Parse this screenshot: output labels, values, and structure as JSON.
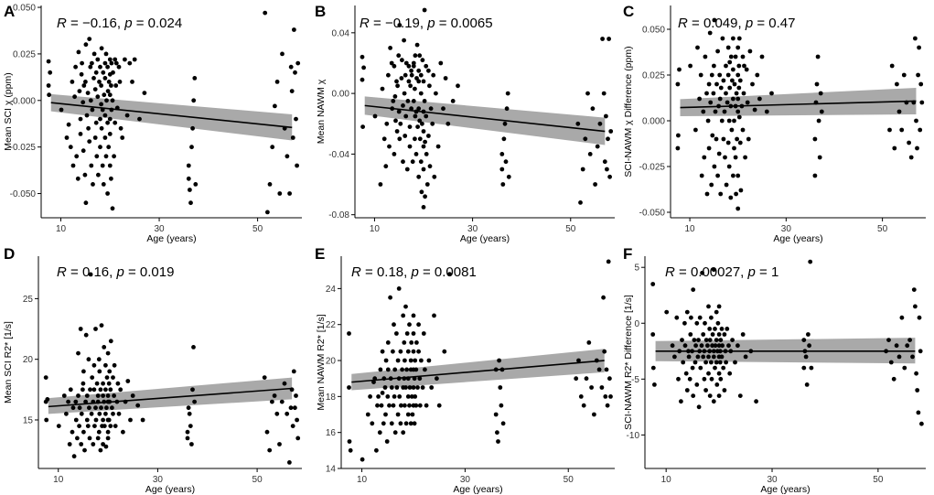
{
  "chart_data": [
    {
      "panel": "A",
      "type": "scatter",
      "stat": {
        "r_label": "R",
        "r_value": " = −0.16, ",
        "p_label": "p",
        "p_value": " = 0.024"
      },
      "xlabel": "Age (years)",
      "ylabel": "Mean SCI χ (ppm)",
      "xlim": [
        6,
        59
      ],
      "ylim": [
        -0.063,
        0.051
      ],
      "xticks": [
        10,
        30,
        50
      ],
      "xticklabels": [
        "10",
        "30",
        "50"
      ],
      "yticks": [
        -0.05,
        -0.025,
        0.0,
        0.025,
        0.05
      ],
      "yticklabels": [
        "-0.050",
        "-0.025",
        "0.000",
        "0.025",
        "0.050"
      ],
      "fit": {
        "x0": 8,
        "y0": -0.0012,
        "x1": 57,
        "y1": -0.0145
      },
      "band": {
        "lo0": -0.0058,
        "hi0": 0.0034,
        "lo1": -0.0215,
        "hi1": -0.0075
      }
    },
    {
      "panel": "B",
      "type": "scatter",
      "stat": {
        "r_label": "R",
        "r_value": " = −0.19, ",
        "p_label": "p",
        "p_value": " = 0.0065"
      },
      "xlabel": "Age (years)",
      "ylabel": "Mean NAWM χ",
      "xlim": [
        6,
        59
      ],
      "ylim": [
        -0.082,
        0.058
      ],
      "xticks": [
        10,
        30,
        50
      ],
      "xticklabels": [
        "10",
        "30",
        "50"
      ],
      "yticks": [
        -0.08,
        -0.04,
        0.0,
        0.04
      ],
      "yticklabels": [
        "-0.08",
        "-0.04",
        "0.00",
        "0.04"
      ],
      "fit": {
        "x0": 8,
        "y0": -0.008,
        "x1": 57,
        "y1": -0.025
      },
      "band": {
        "lo0": -0.014,
        "hi0": -0.002,
        "lo1": -0.034,
        "hi1": -0.016
      }
    },
    {
      "panel": "C",
      "type": "scatter",
      "stat": {
        "r_label": "R",
        "r_value": " = 0.049, ",
        "p_label": "p",
        "p_value": " = 0.47"
      },
      "xlabel": "Age (years)",
      "ylabel": "SCI-NAWM χ Difference (ppm)",
      "xlim": [
        6,
        59
      ],
      "ylim": [
        -0.053,
        0.063
      ],
      "xticks": [
        10,
        30,
        50
      ],
      "xticklabels": [
        "10",
        "30",
        "50"
      ],
      "yticks": [
        -0.05,
        -0.025,
        0.0,
        0.025,
        0.05
      ],
      "yticklabels": [
        "-0.050",
        "-0.025",
        "0.000",
        "0.025",
        "0.050"
      ],
      "fit": {
        "x0": 8,
        "y0": 0.0072,
        "x1": 57,
        "y1": 0.0108
      },
      "band": {
        "lo0": 0.0025,
        "hi0": 0.0118,
        "lo1": 0.0035,
        "hi1": 0.018
      }
    },
    {
      "panel": "D",
      "type": "scatter",
      "stat": {
        "r_label": "R",
        "r_value": " = 0.16, ",
        "p_label": "p",
        "p_value": " = 0.019"
      },
      "xlabel": "Age (years)",
      "ylabel": "Mean SCI R2* [1/s]",
      "xlim": [
        6,
        59
      ],
      "ylim": [
        11.0,
        28.5
      ],
      "xticks": [
        10,
        30,
        50
      ],
      "xticklabels": [
        "10",
        "30",
        "50"
      ],
      "yticks": [
        15,
        20,
        25
      ],
      "yticklabels": [
        "15",
        "20",
        "25"
      ],
      "fit": {
        "x0": 8,
        "y0": 16.1,
        "x1": 57,
        "y1": 17.6
      },
      "band": {
        "lo0": 15.5,
        "hi0": 16.8,
        "lo1": 16.7,
        "hi1": 18.5
      }
    },
    {
      "panel": "E",
      "type": "scatter",
      "stat": {
        "r_label": "R",
        "r_value": " = 0.18, ",
        "p_label": "p",
        "p_value": " = 0.0081"
      },
      "xlabel": "Age (years)",
      "ylabel": "Mean NAWM R2* [1/s]",
      "xlim": [
        6,
        59
      ],
      "ylim": [
        14.0,
        25.8
      ],
      "xticks": [
        10,
        30,
        50
      ],
      "xticklabels": [
        "10",
        "30",
        "50"
      ],
      "yticks": [
        14,
        16,
        18,
        20,
        22,
        24
      ],
      "yticklabels": [
        "14",
        "16",
        "18",
        "20",
        "22",
        "24"
      ],
      "fit": {
        "x0": 8,
        "y0": 18.8,
        "x1": 57,
        "y1": 20.0
      },
      "band": {
        "lo0": 18.35,
        "hi0": 19.25,
        "lo1": 19.35,
        "hi1": 20.65
      }
    },
    {
      "panel": "F",
      "type": "scatter",
      "stat": {
        "r_label": "R",
        "r_value": " = 0.00027, ",
        "p_label": "p",
        "p_value": " = 1"
      },
      "xlabel": "Age (years)",
      "ylabel": "SCI-NAWM R2* Difference [1/s]",
      "xlim": [
        6,
        59
      ],
      "ylim": [
        -13.0,
        6.0
      ],
      "xticks": [
        10,
        30,
        50
      ],
      "xticklabels": [
        "10",
        "30",
        "50"
      ],
      "yticks": [
        -10,
        -5,
        0,
        5
      ],
      "yticklabels": [
        "-10",
        "-5",
        "0",
        "5"
      ],
      "fit": {
        "x0": 8,
        "y0": -2.5,
        "x1": 57,
        "y1": -2.5
      },
      "band": {
        "lo0": -3.4,
        "hi0": -1.6,
        "lo1": -3.6,
        "hi1": -1.3
      }
    }
  ],
  "points_x": [
    7.5,
    7.5,
    7.6,
    7.8,
    10.1,
    11.2,
    11.6,
    12.0,
    12.3,
    12.5,
    12.8,
    13.0,
    13.2,
    13.5,
    13.6,
    13.8,
    14.0,
    14.0,
    14.2,
    14.3,
    14.5,
    14.6,
    14.7,
    14.9,
    15.0,
    15.1,
    15.1,
    15.3,
    15.5,
    15.6,
    15.8,
    15.8,
    16.0,
    16.1,
    16.2,
    16.3,
    16.4,
    16.5,
    16.7,
    16.8,
    17.0,
    17.0,
    17.2,
    17.2,
    17.3,
    17.5,
    17.5,
    17.6,
    17.8,
    18.0,
    18.0,
    18.0,
    18.2,
    18.2,
    18.3,
    18.3,
    18.5,
    18.5,
    18.6,
    18.7,
    18.8,
    19.0,
    19.0,
    19.0,
    19.0,
    19.2,
    19.2,
    19.3,
    19.5,
    19.5,
    19.5,
    19.6,
    19.7,
    19.8,
    20.0,
    20.0,
    20.0,
    20.0,
    20.0,
    20.0,
    20.2,
    20.2,
    20.3,
    20.3,
    20.5,
    20.5,
    20.6,
    20.8,
    21.0,
    21.0,
    21.2,
    21.3,
    21.5,
    21.8,
    22.0,
    22.2,
    22.5,
    23.0,
    23.5,
    24.0,
    24.5,
    25.0,
    26.0,
    27.0,
    36.0,
    36.0,
    36.2,
    36.4,
    36.6,
    36.8,
    37.0,
    37.2,
    37.4,
    51.5,
    52.0,
    52.5,
    53.0,
    53.5,
    54.0,
    54.5,
    55.0,
    55.5,
    56.0,
    56.5,
    56.8,
    57.0,
    57.2,
    57.4,
    57.6,
    57.8,
    58.0,
    58.2
  ],
  "points_y_A": [
    0.021,
    0.008,
    0.003,
    0.015,
    -0.005,
    -0.02,
    -0.013,
    -0.025,
    0.01,
    -0.035,
    0.002,
    0.018,
    -0.03,
    -0.042,
    0.026,
    0.005,
    -0.01,
    -0.018,
    0.014,
    0.02,
    -0.001,
    -0.027,
    0.008,
    -0.04,
    0.01,
    -0.055,
    0.03,
    -0.008,
    0.004,
    -0.015,
    0.033,
    -0.022,
    0.018,
    0.0,
    -0.035,
    0.02,
    -0.005,
    -0.045,
    0.012,
    0.025,
    -0.02,
    0.006,
    0.015,
    -0.012,
    -0.03,
    0.002,
    0.022,
    -0.04,
    0.01,
    -0.01,
    -0.025,
    0.018,
    -0.002,
    0.008,
    -0.015,
    0.028,
    -0.035,
    -0.005,
    0.015,
    -0.045,
    0.003,
    0.02,
    -0.02,
    -0.008,
    0.012,
    -0.03,
    0.025,
    0.0,
    -0.012,
    -0.05,
    0.018,
    0.005,
    -0.025,
    0.01,
    0.022,
    -0.01,
    -0.035,
    0.014,
    -0.018,
    0.003,
    -0.042,
    0.008,
    0.02,
    -0.005,
    -0.058,
    0.0,
    0.015,
    -0.03,
    0.022,
    -0.012,
    0.008,
    0.02,
    -0.004,
    0.018,
    0.01,
    -0.015,
    -0.02,
    0.022,
    -0.008,
    0.02,
    0.01,
    0.022,
    -0.01,
    0.004,
    -0.035,
    -0.042,
    -0.048,
    -0.055,
    -0.025,
    -0.015,
    0.0,
    0.012,
    -0.045,
    0.047,
    -0.06,
    -0.045,
    -0.025,
    -0.003,
    0.01,
    -0.05,
    0.025,
    -0.015,
    -0.03,
    -0.05,
    0.018,
    0.005,
    -0.02,
    0.038,
    0.015,
    -0.01,
    -0.035,
    0.02
  ],
  "points_y_B": [
    0.024,
    0.009,
    -0.022,
    0.017,
    -0.015,
    -0.06,
    0.003,
    -0.03,
    -0.048,
    -0.02,
    0.012,
    -0.035,
    0.03,
    0.02,
    -0.01,
    -0.005,
    0.018,
    -0.04,
    -0.002,
    -0.018,
    0.008,
    -0.025,
    0.005,
    0.025,
    -0.012,
    -0.03,
    0.045,
    -0.02,
    0.01,
    0.022,
    -0.045,
    -0.008,
    0.035,
    0.0,
    -0.028,
    0.012,
    -0.015,
    0.02,
    -0.05,
    -0.005,
    0.008,
    0.018,
    -0.022,
    -0.035,
    0.005,
    0.015,
    -0.01,
    0.012,
    -0.045,
    0.02,
    -0.005,
    0.018,
    -0.03,
    0.003,
    -0.015,
    0.025,
    -0.04,
    -0.012,
    0.01,
    0.032,
    -0.022,
    0.008,
    -0.055,
    0.015,
    -0.01,
    -0.018,
    0.025,
    -0.03,
    0.0,
    -0.045,
    0.012,
    -0.065,
    -0.02,
    0.022,
    -0.012,
    -0.035,
    -0.05,
    0.008,
    -0.025,
    -0.075,
    0.055,
    -0.005,
    -0.068,
    -0.032,
    -0.015,
    0.018,
    -0.04,
    -0.06,
    0.015,
    -0.028,
    0.005,
    -0.048,
    -0.01,
    -0.02,
    0.012,
    -0.055,
    0.0,
    -0.035,
    0.02,
    -0.01,
    0.01,
    -0.02,
    -0.005,
    0.005,
    -0.04,
    -0.05,
    -0.06,
    -0.03,
    -0.02,
    -0.045,
    -0.01,
    0.0,
    -0.055,
    -0.02,
    -0.072,
    -0.05,
    -0.03,
    0.0,
    -0.04,
    -0.01,
    -0.06,
    -0.035,
    -0.02,
    0.036,
    0.0,
    -0.045,
    -0.015,
    -0.05,
    -0.03,
    0.036,
    -0.055,
    -0.025
  ],
  "points_y_C": [
    0.02,
    -0.015,
    -0.008,
    0.028,
    0.03,
    -0.005,
    0.04,
    0.012,
    0.025,
    -0.03,
    0.005,
    -0.02,
    0.035,
    0.015,
    -0.04,
    0.0,
    0.02,
    -0.015,
    0.048,
    0.01,
    -0.035,
    0.025,
    -0.008,
    0.015,
    0.03,
    -0.025,
    0.055,
    0.005,
    -0.01,
    0.02,
    -0.03,
    0.038,
    0.008,
    -0.018,
    0.025,
    0.012,
    -0.04,
    0.018,
    0.0,
    0.045,
    -0.01,
    0.022,
    0.065,
    0.005,
    -0.02,
    0.03,
    0.015,
    -0.035,
    0.01,
    0.04,
    -0.012,
    0.025,
    0.0,
    -0.025,
    0.032,
    0.018,
    0.008,
    -0.042,
    0.035,
    -0.005,
    0.022,
    0.012,
    -0.03,
    0.028,
    0.045,
    0.0,
    -0.015,
    0.02,
    0.008,
    -0.02,
    0.035,
    -0.04,
    0.015,
    -0.01,
    0.025,
    0.005,
    -0.03,
    0.04,
    0.012,
    -0.048,
    0.03,
    0.018,
    0.045,
    0.002,
    -0.012,
    0.022,
    -0.038,
    0.008,
    0.035,
    -0.005,
    0.015,
    0.03,
    -0.02,
    0.028,
    0.01,
    -0.01,
    0.038,
    0.02,
    0.006,
    0.025,
    0.012,
    0.035,
    0.005,
    0.015,
    -0.03,
    -0.01,
    0.01,
    0.02,
    0.035,
    0.0,
    -0.02,
    0.015,
    0.005,
    -0.005,
    0.03,
    -0.015,
    0.02,
    0.005,
    -0.005,
    0.025,
    0.01,
    -0.012,
    -0.02,
    0.01,
    0.045,
    0.0,
    -0.015,
    0.025,
    0.04,
    -0.005,
    0.02,
    0.01
  ],
  "points_y_D": [
    18.5,
    16.5,
    15.0,
    16.7,
    14.5,
    17.0,
    15.5,
    16.5,
    13.0,
    17.5,
    14.0,
    16.0,
    12.0,
    16.5,
    15.0,
    13.5,
    20.5,
    17.0,
    14.5,
    16.0,
    22.5,
    13.0,
    15.5,
    17.5,
    18.0,
    14.0,
    19.0,
    12.5,
    16.5,
    22.0,
    15.0,
    17.0,
    14.5,
    20.0,
    16.0,
    13.5,
    17.5,
    27.0,
    15.5,
    18.5,
    16.5,
    13.0,
    19.5,
    17.5,
    14.5,
    22.5,
    16.0,
    15.0,
    18.0,
    13.5,
    17.0,
    16.5,
    20.0,
    14.0,
    15.5,
    19.0,
    17.5,
    12.5,
    16.0,
    22.8,
    14.5,
    18.0,
    15.0,
    17.0,
    13.0,
    16.5,
    21.0,
    14.5,
    19.5,
    15.5,
    17.5,
    12.8,
    16.0,
    18.5,
    15.0,
    13.5,
    20.5,
    17.0,
    14.0,
    16.5,
    18.0,
    15.0,
    19.0,
    16.5,
    14.5,
    17.5,
    21.5,
    16.0,
    18.5,
    15.5,
    17.0,
    19.5,
    14.5,
    16.5,
    18.0,
    15.5,
    17.5,
    14.0,
    16.5,
    18.2,
    15.0,
    17.0,
    16.2,
    15.0,
    14.0,
    13.5,
    16.0,
    15.5,
    14.5,
    13.0,
    17.5,
    21.0,
    16.5,
    18.5,
    14.0,
    12.5,
    16.5,
    17.0,
    15.5,
    13.0,
    16.5,
    18.0,
    15.5,
    11.5,
    16.0,
    17.5,
    14.5,
    19.0,
    16.0,
    17.0,
    15.0,
    13.5
  ],
  "points_y_E": [
    21.5,
    18.5,
    15.5,
    15.0,
    14.5,
    17.0,
    18.0,
    16.5,
    18.8,
    19.0,
    15.0,
    17.5,
    18.0,
    16.0,
    19.5,
    17.5,
    20.5,
    18.2,
    16.5,
    19.0,
    18.5,
    17.0,
    20.0,
    15.5,
    18.0,
    19.5,
    21.0,
    17.5,
    23.5,
    19.0,
    16.5,
    18.5,
    20.5,
    17.5,
    22.0,
    18.0,
    19.5,
    16.0,
    21.5,
    18.5,
    17.0,
    20.0,
    19.0,
    24.0,
    18.0,
    16.5,
    20.5,
    17.5,
    19.5,
    22.5,
    18.5,
    16.0,
    21.0,
    19.0,
    17.5,
    20.0,
    18.5,
    23.0,
    16.5,
    19.5,
    21.5,
    18.0,
    17.0,
    20.5,
    19.0,
    22.0,
    17.5,
    18.5,
    20.0,
    16.5,
    19.5,
    21.0,
    18.0,
    17.0,
    22.5,
    19.5,
    18.5,
    20.5,
    17.5,
    21.5,
    19.0,
    16.5,
    18.0,
    20.0,
    19.5,
    17.5,
    21.0,
    18.5,
    20.5,
    22.0,
    19.0,
    17.5,
    20.0,
    18.5,
    21.5,
    19.5,
    17.5,
    20.0,
    18.5,
    22.5,
    19.0,
    17.5,
    20.5,
    24.8,
    19.5,
    17.0,
    16.0,
    15.5,
    20.0,
    18.5,
    17.5,
    19.5,
    16.5,
    19.0,
    20.0,
    18.0,
    17.5,
    19.0,
    21.0,
    18.5,
    17.0,
    20.0,
    19.5,
    18.5,
    23.5,
    20.5,
    18.0,
    19.5,
    17.5,
    25.5,
    19.0,
    18.0
  ],
  "points_y_F": [
    3.5,
    -1.0,
    -4.0,
    -5.5,
    1.0,
    -2.0,
    -3.0,
    0.5,
    -5.0,
    -2.5,
    -7.0,
    -1.5,
    -3.5,
    0.0,
    -2.0,
    -4.5,
    -6.0,
    1.0,
    -2.5,
    -3.0,
    -5.0,
    -1.0,
    0.5,
    -2.5,
    -4.0,
    3.0,
    -6.5,
    -1.5,
    -3.5,
    -2.0,
    -5.5,
    0.0,
    -3.0,
    -1.5,
    -7.5,
    -2.5,
    0.5,
    -4.0,
    -2.0,
    4.5,
    -3.0,
    -1.0,
    -5.0,
    -2.5,
    0.0,
    -6.0,
    -3.5,
    -1.5,
    -2.0,
    1.5,
    -4.5,
    -3.0,
    -0.5,
    -2.5,
    -6.5,
    -1.5,
    -3.5,
    0.5,
    -5.0,
    -2.0,
    -1.0,
    -3.0,
    4.8,
    -2.5,
    -7.0,
    -0.5,
    -4.0,
    -2.0,
    1.0,
    -3.5,
    -1.5,
    -5.5,
    -2.5,
    0.0,
    -3.0,
    -6.5,
    -1.0,
    -2.0,
    -4.5,
    1.5,
    -3.5,
    -2.5,
    -5.0,
    -1.5,
    -0.5,
    -3.0,
    -2.0,
    -4.0,
    -6.0,
    -1.0,
    -2.5,
    -3.5,
    -0.5,
    -2.0,
    -4.5,
    -2.5,
    -1.5,
    -3.5,
    -2.0,
    -6.5,
    -1.0,
    -3.0,
    -2.5,
    -7.0,
    -1.5,
    -4.0,
    -2.5,
    -3.0,
    -5.5,
    -1.0,
    -2.0,
    5.5,
    -4.0,
    -2.5,
    -1.5,
    -3.5,
    -5.0,
    -2.0,
    -3.0,
    0.5,
    -4.0,
    -2.0,
    -1.5,
    -3.0,
    3.0,
    1.5,
    -4.5,
    -6.0,
    -8.0,
    0.5,
    -2.5,
    -9.0,
    -12.0,
    -1.5
  ]
}
